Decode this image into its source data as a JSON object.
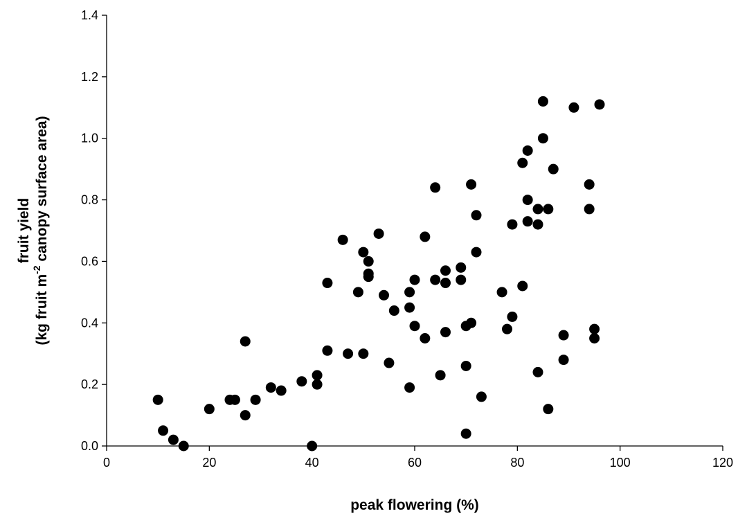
{
  "chart_data": {
    "type": "scatter",
    "title": "",
    "xlabel": "peak flowering (%)",
    "ylabel_line1": "fruit yield",
    "ylabel_line2_pre": "(kg fruit m",
    "ylabel_line2_sup": "-2",
    "ylabel_line2_post": " canopy surface area)",
    "xlim": [
      0,
      120
    ],
    "ylim": [
      0,
      1.4
    ],
    "x_ticks": [
      0,
      20,
      40,
      60,
      80,
      100,
      120
    ],
    "x_tick_labels": [
      "0",
      "20",
      "40",
      "60",
      "80",
      "100",
      "120"
    ],
    "y_ticks": [
      0,
      0.2,
      0.4,
      0.6,
      0.8,
      1.0,
      1.2,
      1.4
    ],
    "y_tick_labels": [
      "0.0",
      "0.2",
      "0.4",
      "0.6",
      "0.8",
      "1.0",
      "1.2",
      "1.4"
    ],
    "grid": false,
    "legend": "none",
    "marker_color": "#000000",
    "points": [
      [
        10,
        0.15
      ],
      [
        11,
        0.05
      ],
      [
        13,
        0.02
      ],
      [
        15,
        0.0
      ],
      [
        20,
        0.12
      ],
      [
        24,
        0.15
      ],
      [
        25,
        0.15
      ],
      [
        27,
        0.34
      ],
      [
        27,
        0.1
      ],
      [
        29,
        0.15
      ],
      [
        32,
        0.19
      ],
      [
        34,
        0.18
      ],
      [
        38,
        0.21
      ],
      [
        40,
        0.0
      ],
      [
        41,
        0.23
      ],
      [
        41,
        0.2
      ],
      [
        43,
        0.53
      ],
      [
        43,
        0.31
      ],
      [
        46,
        0.67
      ],
      [
        47,
        0.3
      ],
      [
        49,
        0.5
      ],
      [
        50,
        0.63
      ],
      [
        50,
        0.3
      ],
      [
        51,
        0.6
      ],
      [
        51,
        0.56
      ],
      [
        51,
        0.55
      ],
      [
        53,
        0.69
      ],
      [
        54,
        0.49
      ],
      [
        55,
        0.27
      ],
      [
        56,
        0.44
      ],
      [
        59,
        0.5
      ],
      [
        59,
        0.45
      ],
      [
        59,
        0.19
      ],
      [
        60,
        0.54
      ],
      [
        60,
        0.39
      ],
      [
        62,
        0.68
      ],
      [
        62,
        0.35
      ],
      [
        64,
        0.84
      ],
      [
        64,
        0.54
      ],
      [
        65,
        0.23
      ],
      [
        66,
        0.57
      ],
      [
        66,
        0.53
      ],
      [
        66,
        0.37
      ],
      [
        69,
        0.58
      ],
      [
        69,
        0.54
      ],
      [
        70,
        0.39
      ],
      [
        70,
        0.26
      ],
      [
        70,
        0.04
      ],
      [
        71,
        0.85
      ],
      [
        71,
        0.4
      ],
      [
        72,
        0.75
      ],
      [
        72,
        0.63
      ],
      [
        73,
        0.16
      ],
      [
        77,
        0.5
      ],
      [
        78,
        0.38
      ],
      [
        79,
        0.72
      ],
      [
        79,
        0.42
      ],
      [
        81,
        0.92
      ],
      [
        81,
        0.52
      ],
      [
        82,
        0.96
      ],
      [
        82,
        0.8
      ],
      [
        82,
        0.73
      ],
      [
        84,
        0.77
      ],
      [
        84,
        0.72
      ],
      [
        84,
        0.24
      ],
      [
        85,
        1.12
      ],
      [
        85,
        1.0
      ],
      [
        86,
        0.77
      ],
      [
        86,
        0.12
      ],
      [
        87,
        0.9
      ],
      [
        89,
        0.36
      ],
      [
        89,
        0.28
      ],
      [
        91,
        1.1
      ],
      [
        94,
        0.85
      ],
      [
        94,
        0.77
      ],
      [
        95,
        0.38
      ],
      [
        95,
        0.35
      ],
      [
        96,
        1.11
      ]
    ]
  }
}
